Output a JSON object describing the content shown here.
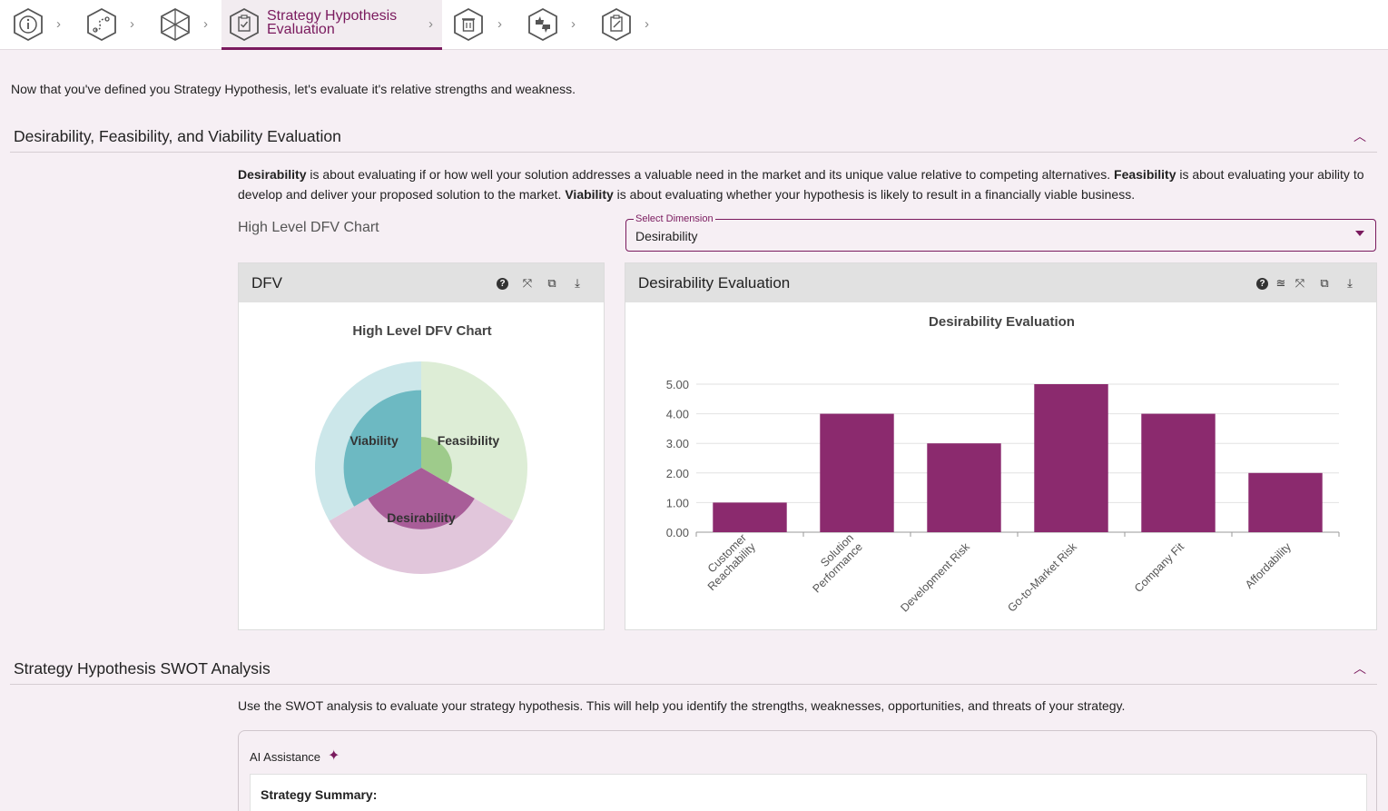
{
  "stepper": {
    "steps": [
      {
        "icon": "info-icon"
      },
      {
        "icon": "route-icon"
      },
      {
        "icon": "strategy-icon"
      },
      {
        "icon": "clipboard-check-icon",
        "label": "Strategy Hypothesis Evaluation",
        "active": true
      },
      {
        "icon": "trash-icon"
      },
      {
        "icon": "thumbs-icon"
      },
      {
        "icon": "clipboard-edit-icon"
      }
    ],
    "accent": "#7a1a5e"
  },
  "intro": "Now that you've defined you Strategy Hypothesis, let's evaluate it's relative strengths and weakness.",
  "dfv_section": {
    "title": "Desirability, Feasibility, and Viability Evaluation",
    "desc_desirability_term": "Desirability",
    "desc_desirability_text": " is about evaluating if or how well your solution addresses a valuable need in the market and its unique value relative to competing alternatives. ",
    "desc_feasibility_term": "Feasibility",
    "desc_feasibility_text": " is about evaluating your ability to develop and deliver your proposed solution to the market. ",
    "desc_viability_term": "Viability",
    "desc_viability_text": " is about evaluating whether your hypothesis is likely to result in a financially viable business.",
    "sub_label": "High Level DFV Chart",
    "select": {
      "legend": "Select Dimension",
      "value": "Desirability"
    }
  },
  "dfv_card": {
    "title": "DFV"
  },
  "eval_card": {
    "title": "Desirability Evaluation"
  },
  "chart_data": [
    {
      "type": "pie",
      "title": "High Level DFV Chart",
      "categories": [
        "Feasibility",
        "Desirability",
        "Viability"
      ],
      "outer_values": [
        1,
        1,
        1
      ],
      "inner_relative_radius": [
        0.29,
        0.58,
        0.73
      ],
      "colors": {
        "Feasibility": "#9ecb8b",
        "Desirability": "#a85d98",
        "Viability": "#6db9c2"
      },
      "legend": "none"
    },
    {
      "type": "bar",
      "title": "Desirability Evaluation",
      "categories": [
        "Customer Reachability",
        "Solution Performance",
        "Development Risk",
        "Go-to-Market Risk",
        "Company Fit",
        "Affordability"
      ],
      "values": [
        1,
        4,
        3,
        5,
        4,
        2
      ],
      "ylim": [
        0,
        5
      ],
      "yticks": [
        "0.00",
        "1.00",
        "2.00",
        "3.00",
        "4.00",
        "5.00"
      ],
      "color": "#8b2a6e",
      "grid": true,
      "xlabel": "",
      "ylabel": ""
    }
  ],
  "swot": {
    "title": "Strategy Hypothesis SWOT Analysis",
    "desc": "Use the SWOT analysis to evaluate your strategy hypothesis. This will help you identify the strengths, weaknesses, opportunities, and threats of your strategy.",
    "ai_label": "AI Assistance",
    "summary_title": "Strategy Summary:"
  }
}
